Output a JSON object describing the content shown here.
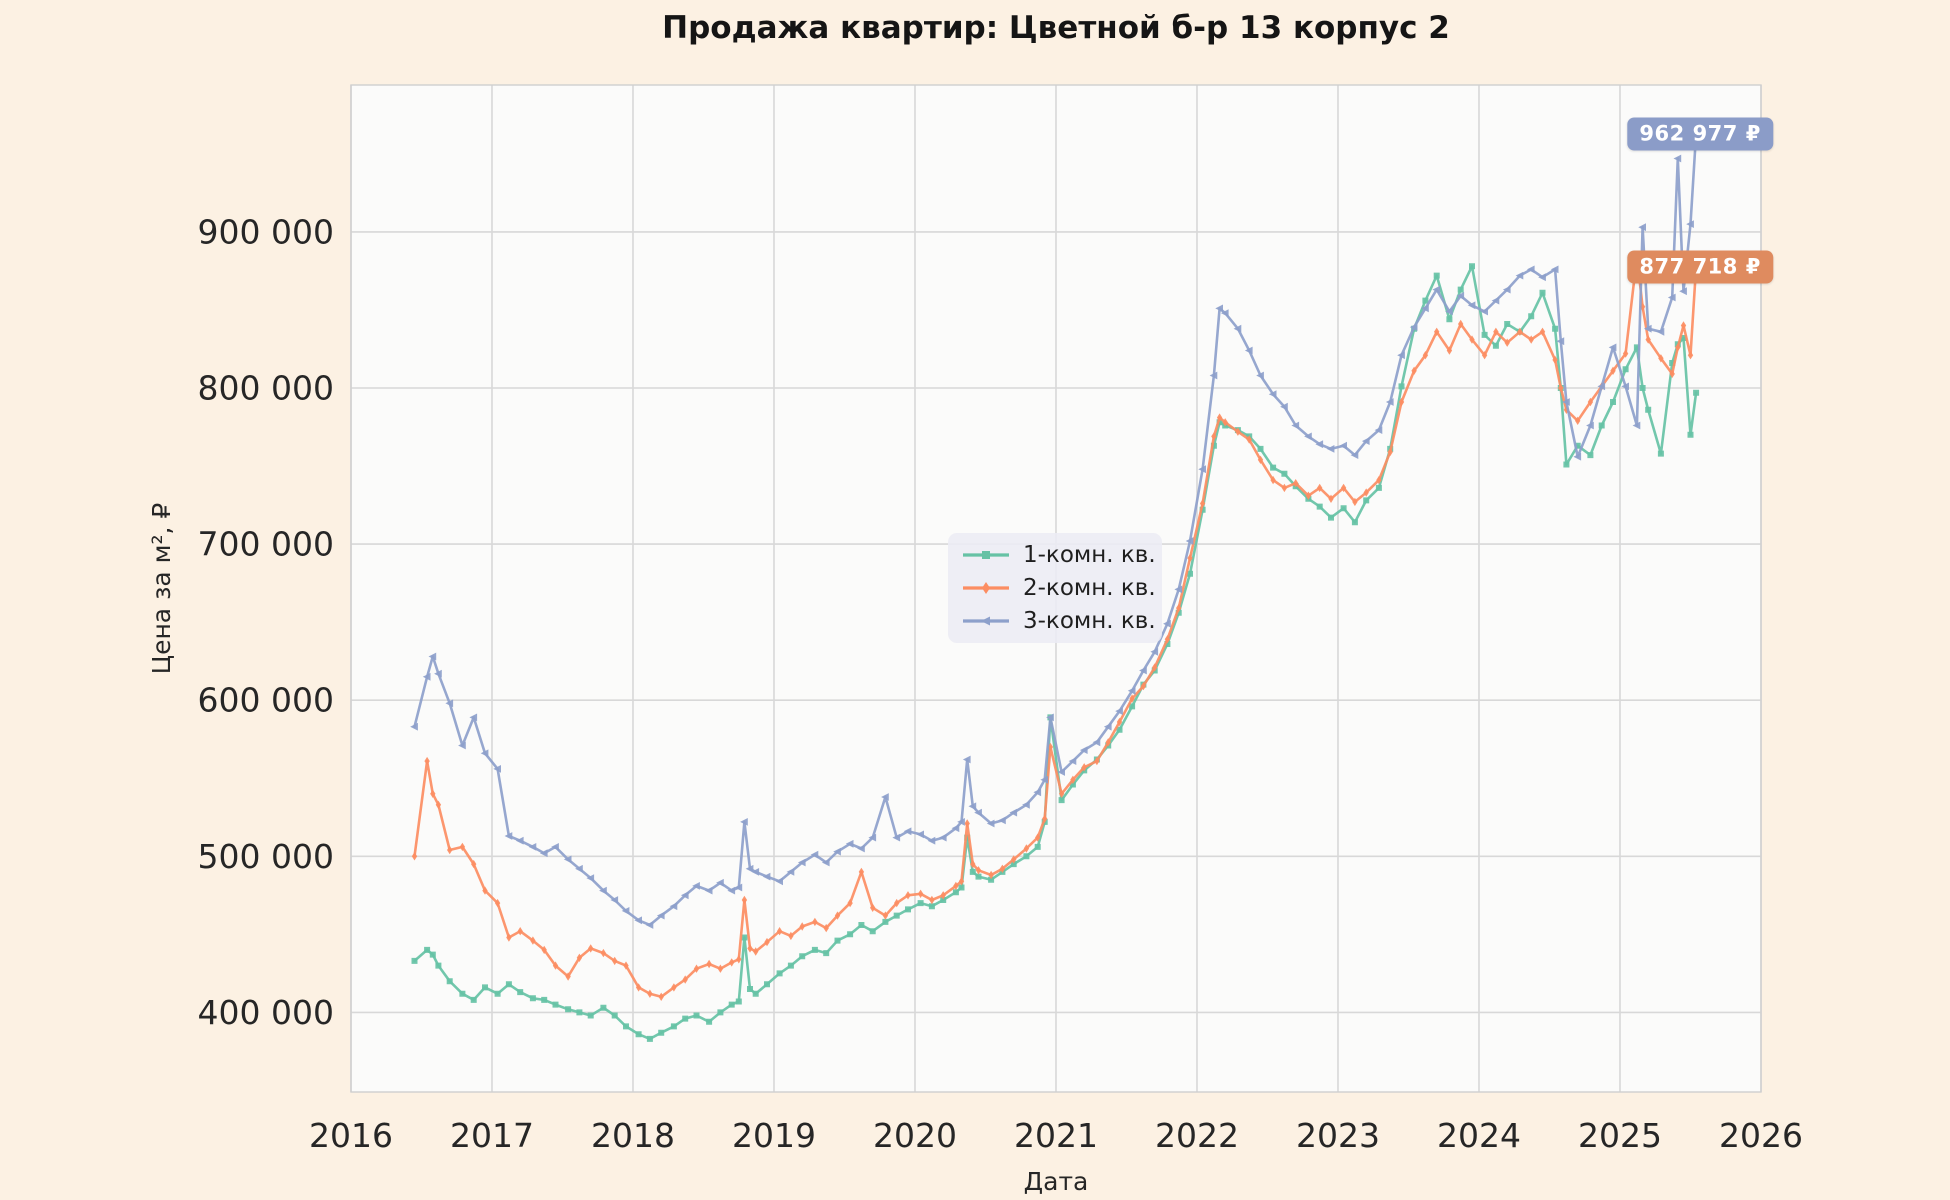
{
  "title": "Продажа квартир: Цветной б-р 13 корпус 2",
  "chart_data": {
    "type": "line",
    "title": "Продажа квартир: Цветной б-р 13 корпус 2",
    "xlabel": "Дата",
    "ylabel": "Цена за м², ₽",
    "grid": true,
    "legend_position": "center",
    "xlim": [
      2016,
      2026
    ],
    "ylim": [
      349000,
      994100
    ],
    "x_ticks": [
      2016,
      2017,
      2018,
      2019,
      2020,
      2021,
      2022,
      2023,
      2024,
      2025,
      2026
    ],
    "y_ticks": [
      {
        "value": 400000,
        "label": "400 000"
      },
      {
        "value": 500000,
        "label": "500 000"
      },
      {
        "value": 600000,
        "label": "600 000"
      },
      {
        "value": 700000,
        "label": "700 000"
      },
      {
        "value": 800000,
        "label": "800 000"
      },
      {
        "value": 900000,
        "label": "900 000"
      }
    ],
    "x": [
      2016.45,
      2016.54,
      2016.58,
      2016.62,
      2016.7,
      2016.79,
      2016.87,
      2016.95,
      2017.04,
      2017.12,
      2017.2,
      2017.29,
      2017.37,
      2017.45,
      2017.54,
      2017.62,
      2017.7,
      2017.79,
      2017.87,
      2017.95,
      2018.04,
      2018.12,
      2018.2,
      2018.29,
      2018.37,
      2018.45,
      2018.54,
      2018.62,
      2018.7,
      2018.75,
      2018.79,
      2018.83,
      2018.87,
      2018.95,
      2019.04,
      2019.12,
      2019.2,
      2019.29,
      2019.37,
      2019.45,
      2019.54,
      2019.62,
      2019.7,
      2019.79,
      2019.87,
      2019.95,
      2020.04,
      2020.12,
      2020.2,
      2020.29,
      2020.33,
      2020.37,
      2020.41,
      2020.45,
      2020.54,
      2020.62,
      2020.7,
      2020.79,
      2020.87,
      2020.92,
      2020.96,
      2021.04,
      2021.12,
      2021.2,
      2021.29,
      2021.37,
      2021.45,
      2021.54,
      2021.62,
      2021.7,
      2021.79,
      2021.87,
      2021.95,
      2022.04,
      2022.12,
      2022.16,
      2022.2,
      2022.29,
      2022.37,
      2022.45,
      2022.54,
      2022.62,
      2022.7,
      2022.79,
      2022.87,
      2022.95,
      2023.04,
      2023.12,
      2023.2,
      2023.29,
      2023.37,
      2023.45,
      2023.54,
      2023.62,
      2023.7,
      2023.79,
      2023.87,
      2023.95,
      2024.04,
      2024.12,
      2024.2,
      2024.29,
      2024.37,
      2024.45,
      2024.54,
      2024.58,
      2024.62,
      2024.7,
      2024.79,
      2024.87,
      2024.95,
      2025.04,
      2025.12,
      2025.16,
      2025.2,
      2025.29,
      2025.37,
      2025.41,
      2025.45,
      2025.5,
      2025.54
    ],
    "series": [
      {
        "name": "1-комн. кв.",
        "color": "#66c2a5",
        "marker": "square",
        "y": [
          433000,
          440000,
          437000,
          430000,
          420000,
          412000,
          408000,
          416000,
          412000,
          418000,
          413000,
          409000,
          408000,
          405000,
          402000,
          400000,
          398000,
          403000,
          398000,
          391000,
          386000,
          383000,
          387000,
          391000,
          396000,
          398000,
          394000,
          400000,
          405000,
          407000,
          448000,
          415000,
          412000,
          418000,
          425000,
          430000,
          436000,
          440000,
          438000,
          446000,
          450000,
          456000,
          452000,
          458000,
          462000,
          466000,
          470000,
          468000,
          472000,
          477000,
          480000,
          512000,
          490000,
          487000,
          485000,
          490000,
          495000,
          500000,
          506000,
          522000,
          589000,
          536000,
          546000,
          555000,
          562000,
          571000,
          581000,
          596000,
          610000,
          619000,
          636000,
          656000,
          681000,
          722000,
          763000,
          778000,
          776000,
          773000,
          769000,
          761000,
          749000,
          745000,
          737000,
          729000,
          724000,
          717000,
          723000,
          714000,
          728000,
          736000,
          761000,
          801000,
          838000,
          856000,
          872000,
          844000,
          863000,
          878000,
          834000,
          827000,
          841000,
          836000,
          846000,
          861000,
          838000,
          800000,
          751000,
          763000,
          757000,
          776000,
          791000,
          812000,
          826000,
          800000,
          786000,
          758000,
          816000,
          828000,
          832000,
          770000,
          797000
        ]
      },
      {
        "name": "2-комн. кв.",
        "color": "#fc8d62",
        "marker": "thin-diamond",
        "y": [
          500000,
          561000,
          540000,
          533000,
          504000,
          506000,
          495000,
          478000,
          470000,
          448000,
          452000,
          446000,
          440000,
          430000,
          423000,
          435000,
          441000,
          438000,
          433000,
          430000,
          416000,
          412000,
          410000,
          416000,
          421000,
          428000,
          431000,
          428000,
          432000,
          434000,
          472000,
          441000,
          439000,
          445000,
          452000,
          449000,
          455000,
          458000,
          454000,
          462000,
          470000,
          490000,
          467000,
          462000,
          470000,
          475000,
          476000,
          472000,
          475000,
          481000,
          484000,
          521000,
          495000,
          491000,
          488000,
          492000,
          498000,
          505000,
          512000,
          524000,
          570000,
          540000,
          549000,
          557000,
          561000,
          573000,
          586000,
          601000,
          609000,
          621000,
          639000,
          659000,
          691000,
          726000,
          769000,
          781000,
          778000,
          772000,
          767000,
          754000,
          741000,
          736000,
          739000,
          731000,
          736000,
          729000,
          736000,
          727000,
          733000,
          741000,
          759000,
          791000,
          811000,
          821000,
          836000,
          824000,
          841000,
          831000,
          821000,
          836000,
          829000,
          836000,
          831000,
          836000,
          818000,
          800000,
          786000,
          779000,
          791000,
          801000,
          811000,
          822000,
          884000,
          852000,
          831000,
          819000,
          809000,
          826000,
          840000,
          821000,
          877718
        ]
      },
      {
        "name": "3-комн. кв.",
        "color": "#8da0cb",
        "marker": "triangle-left",
        "y": [
          583000,
          615000,
          628000,
          617000,
          598000,
          571000,
          589000,
          566000,
          556000,
          513000,
          510000,
          506000,
          502000,
          506000,
          498000,
          492000,
          486000,
          478000,
          472000,
          465000,
          459000,
          456000,
          462000,
          468000,
          475000,
          481000,
          478000,
          483000,
          478000,
          480000,
          522000,
          492000,
          490000,
          487000,
          484000,
          490000,
          496000,
          501000,
          496000,
          503000,
          508000,
          505000,
          512000,
          538000,
          512000,
          516000,
          514000,
          510000,
          512000,
          518000,
          522000,
          562000,
          532000,
          528000,
          521000,
          523000,
          528000,
          533000,
          541000,
          549000,
          589000,
          554000,
          561000,
          568000,
          573000,
          583000,
          593000,
          606000,
          619000,
          631000,
          649000,
          671000,
          702000,
          748000,
          808000,
          851000,
          848000,
          838000,
          824000,
          808000,
          796000,
          788000,
          776000,
          769000,
          764000,
          761000,
          763000,
          757000,
          766000,
          773000,
          791000,
          821000,
          839000,
          851000,
          863000,
          849000,
          859000,
          853000,
          849000,
          856000,
          863000,
          872000,
          876000,
          871000,
          876000,
          830000,
          791000,
          756000,
          776000,
          801000,
          826000,
          801000,
          776000,
          903000,
          838000,
          836000,
          858000,
          947000,
          862000,
          905000,
          962977
        ]
      }
    ],
    "annotations": [
      {
        "text": "962 977 ₽",
        "color": "#8b9cc8",
        "x": 2025.54,
        "y": 962977
      },
      {
        "text": "877 718 ₽",
        "color": "#df8b5f",
        "x": 2025.54,
        "y": 877718
      }
    ]
  }
}
